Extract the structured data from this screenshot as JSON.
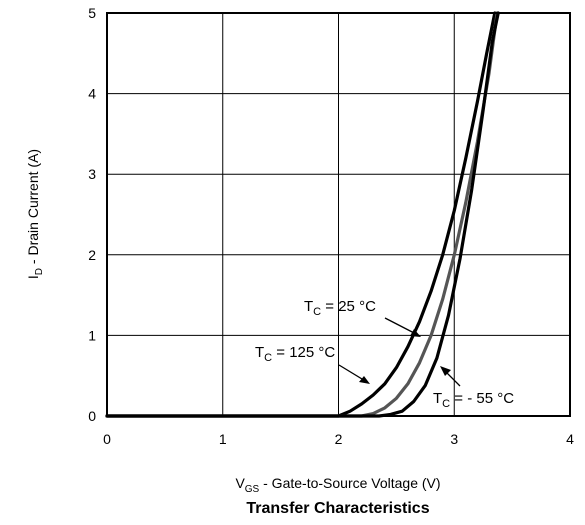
{
  "chart_data": {
    "type": "line",
    "caption": "Transfer Characteristics",
    "xlabel": {
      "main": "V",
      "sub": "GS",
      "rest": " - Gate-to-Source Voltage (V)"
    },
    "ylabel": {
      "main": "I",
      "sub": "D",
      "rest": " - Drain Current (A)"
    },
    "xlim": [
      0,
      4
    ],
    "ylim": [
      0,
      5
    ],
    "x_ticks": [
      "0",
      "1",
      "2",
      "3",
      "4"
    ],
    "y_ticks": [
      "0",
      "1",
      "2",
      "3",
      "4",
      "5"
    ],
    "grid": true,
    "series": [
      {
        "name": "T_C = 125 °C",
        "color": "#000000",
        "points": [
          [
            0,
            0
          ],
          [
            2.0,
            0
          ],
          [
            2.1,
            0.06
          ],
          [
            2.2,
            0.15
          ],
          [
            2.3,
            0.26
          ],
          [
            2.4,
            0.4
          ],
          [
            2.5,
            0.6
          ],
          [
            2.6,
            0.86
          ],
          [
            2.7,
            1.17
          ],
          [
            2.8,
            1.55
          ],
          [
            2.9,
            2.0
          ],
          [
            3.0,
            2.55
          ],
          [
            3.1,
            3.2
          ],
          [
            3.2,
            3.9
          ],
          [
            3.28,
            4.5
          ],
          [
            3.35,
            5.0
          ]
        ]
      },
      {
        "name": "T_C = 25 °C",
        "color": "#555555",
        "points": [
          [
            0,
            0
          ],
          [
            2.2,
            0
          ],
          [
            2.3,
            0.03
          ],
          [
            2.4,
            0.1
          ],
          [
            2.5,
            0.22
          ],
          [
            2.6,
            0.4
          ],
          [
            2.7,
            0.66
          ],
          [
            2.8,
            1.0
          ],
          [
            2.9,
            1.45
          ],
          [
            3.0,
            2.0
          ],
          [
            3.1,
            2.65
          ],
          [
            3.2,
            3.4
          ],
          [
            3.3,
            4.25
          ],
          [
            3.37,
            5.0
          ]
        ]
      },
      {
        "name": "T_C = - 55 °C",
        "color": "#000000",
        "points": [
          [
            0,
            0
          ],
          [
            2.35,
            0
          ],
          [
            2.45,
            0.02
          ],
          [
            2.55,
            0.06
          ],
          [
            2.65,
            0.18
          ],
          [
            2.75,
            0.38
          ],
          [
            2.85,
            0.72
          ],
          [
            2.95,
            1.25
          ],
          [
            3.05,
            1.95
          ],
          [
            3.15,
            2.8
          ],
          [
            3.25,
            3.8
          ],
          [
            3.33,
            4.65
          ],
          [
            3.38,
            5.0
          ]
        ]
      }
    ],
    "annotations": [
      {
        "main": "T",
        "sub": "C",
        "rest": " = 25 °C",
        "points_to_series": 1
      },
      {
        "main": "T",
        "sub": "C",
        "rest": " = 125 °C",
        "points_to_series": 0
      },
      {
        "main": "T",
        "sub": "C",
        "rest": " = - 55 °C",
        "points_to_series": 2
      }
    ]
  }
}
